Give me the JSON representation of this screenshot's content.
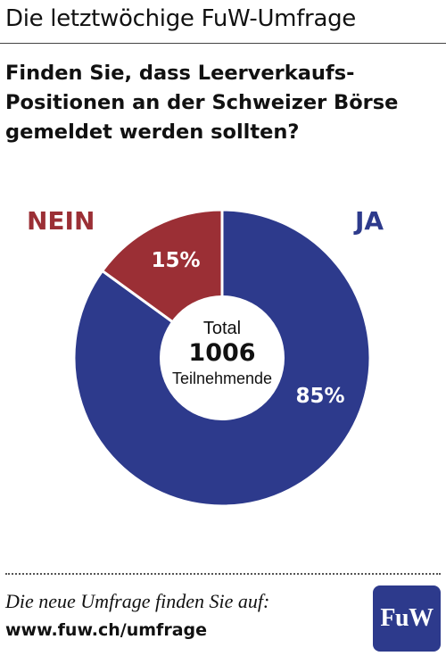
{
  "header": {
    "title": "Die letztwöchige FuW-Umfrage"
  },
  "question": {
    "line1": "Finden Sie, dass Leerverkaufs-",
    "line2": "Positionen an der Schweizer Börse",
    "line3": "gemeldet werden sollten?"
  },
  "chart_data": {
    "type": "pie",
    "slices": [
      {
        "label": "JA",
        "value": 85,
        "value_label": "85%",
        "color": "#2d3a8c"
      },
      {
        "label": "NEIN",
        "value": 15,
        "value_label": "15%",
        "color": "#9b2f35"
      }
    ],
    "center": {
      "line1": "Total",
      "line2": "1006",
      "line3": "Teilnehmende"
    },
    "legend_placement": "top-left and top-right"
  },
  "footer": {
    "text": "Die neue Umfrage finden Sie auf:",
    "link": "www.fuw.ch/umfrage",
    "logo_text": "FuW"
  },
  "colors": {
    "ja": "#2d3a8c",
    "nein": "#9b2f35",
    "logo_bg": "#2d3a8c"
  }
}
